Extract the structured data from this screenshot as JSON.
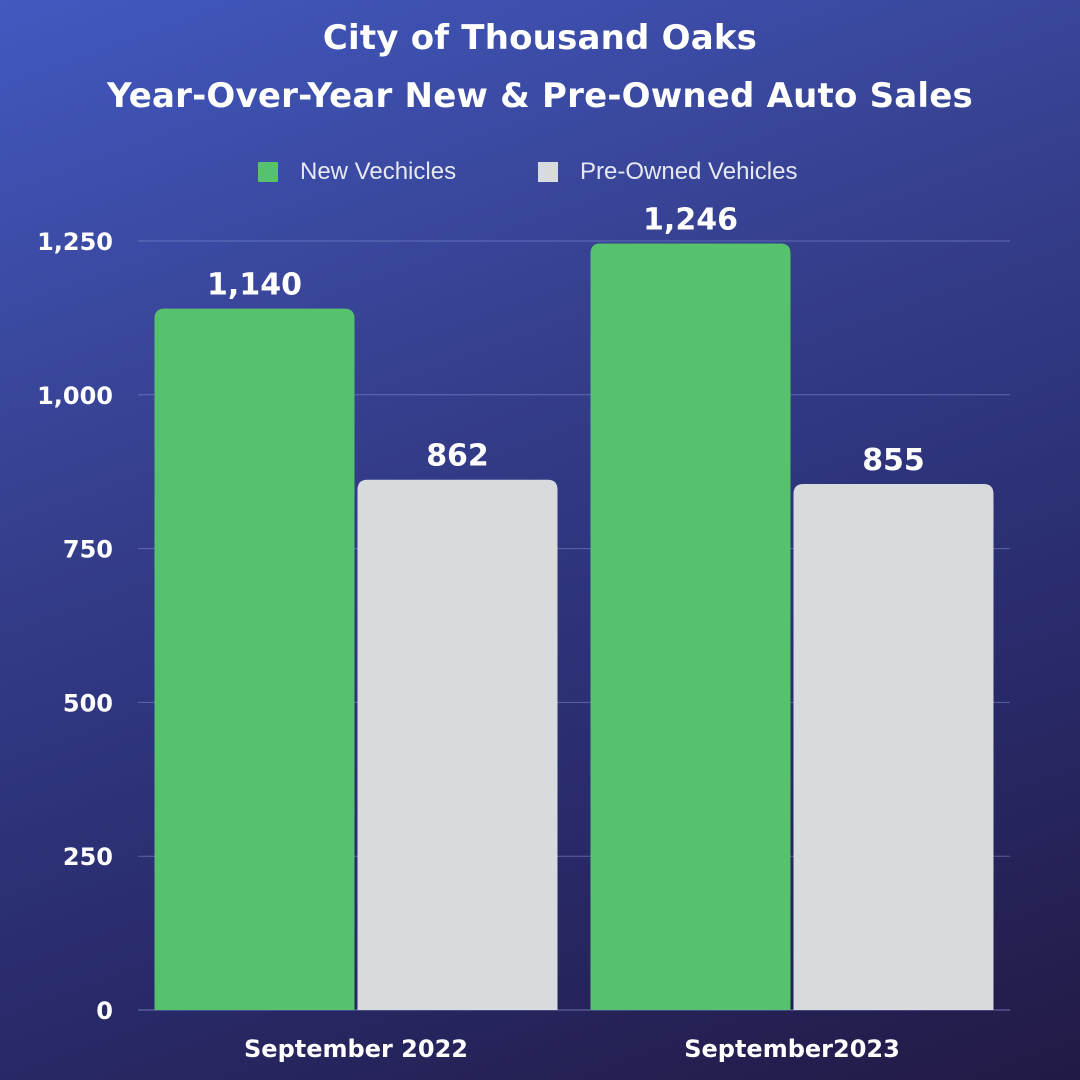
{
  "chart_data": {
    "type": "bar",
    "title": "City of Thousand Oaks",
    "subtitle": "Year-Over-Year New & Pre-Owned Auto Sales",
    "xlabel": "",
    "ylabel": "",
    "categories": [
      "September 2022",
      "September2023"
    ],
    "series": [
      {
        "name": "New Vechicles",
        "values": [
          1140,
          1246
        ],
        "color": "#57c26e"
      },
      {
        "name": "Pre-Owned Vehicles",
        "values": [
          862,
          855
        ],
        "color": "#d7dbdd"
      }
    ],
    "data_labels": [
      [
        "1,140",
        "1,246"
      ],
      [
        "862",
        "855"
      ]
    ],
    "yticks": [
      0,
      250,
      500,
      750,
      1000,
      1250
    ],
    "ytick_labels": [
      "0",
      "250",
      "500",
      "750",
      "1,000",
      "1,250"
    ],
    "ylim": [
      0,
      1250
    ],
    "grid": true,
    "legend_position": "top-center"
  }
}
